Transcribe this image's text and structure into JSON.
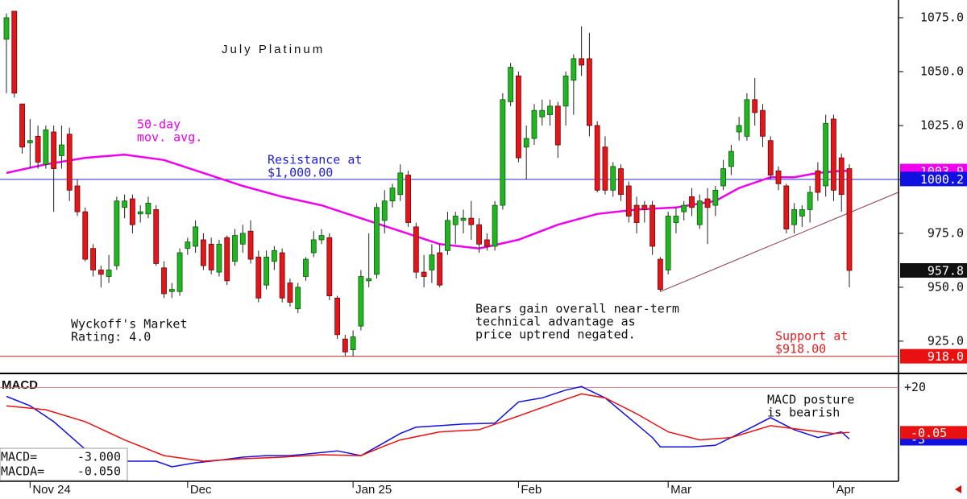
{
  "chart_data": {
    "type": "candlestick",
    "title": "July Platinum",
    "categories": [
      null,
      null,
      null,
      "Nov 24",
      null,
      null,
      null,
      null,
      null,
      null,
      null,
      null,
      null,
      null,
      null,
      null,
      null,
      null,
      null,
      null,
      null,
      null,
      null,
      "Dec",
      null,
      null,
      null,
      null,
      null,
      null,
      null,
      null,
      null,
      null,
      null,
      null,
      null,
      null,
      null,
      null,
      null,
      null,
      null,
      null,
      "Jan 25",
      null,
      null,
      null,
      null,
      null,
      null,
      null,
      null,
      null,
      null,
      null,
      null,
      null,
      null,
      null,
      null,
      null,
      null,
      null,
      null,
      "Feb",
      null,
      null,
      null,
      null,
      null,
      null,
      null,
      null,
      null,
      null,
      null,
      null,
      null,
      null,
      null,
      null,
      null,
      null,
      "Mar",
      null,
      null,
      null,
      null,
      null,
      null,
      null,
      null,
      null,
      null,
      null,
      null,
      null,
      null,
      null,
      null,
      null,
      null,
      null,
      null,
      "Apr",
      null,
      null
    ],
    "ohlc": [
      [
        1065,
        1077,
        1040,
        1075
      ],
      [
        1078,
        1078,
        1038,
        1040
      ],
      [
        1035,
        1035,
        1012,
        1015
      ],
      [
        1017,
        1028,
        1005,
        1018
      ],
      [
        1020,
        1025,
        1005,
        1008
      ],
      [
        1007,
        1025,
        1005,
        1023
      ],
      [
        1022,
        1025,
        985,
        1005
      ],
      [
        1011,
        1025,
        1005,
        1016
      ],
      [
        1021,
        1024,
        990,
        995
      ],
      [
        997,
        1000,
        983,
        985
      ],
      [
        985,
        987,
        962,
        963
      ],
      [
        968,
        970,
        955,
        958
      ],
      [
        958,
        960,
        950,
        956
      ],
      [
        955,
        965,
        952,
        958
      ],
      [
        960,
        992,
        958,
        990
      ],
      [
        987,
        993,
        982,
        990
      ],
      [
        991,
        993,
        975,
        979
      ],
      [
        984,
        988,
        980,
        985
      ],
      [
        984,
        992,
        982,
        989
      ],
      [
        986,
        988,
        960,
        961
      ],
      [
        959,
        962,
        945,
        947
      ],
      [
        948,
        952,
        945,
        949
      ],
      [
        948,
        968,
        946,
        966
      ],
      [
        968,
        973,
        965,
        971
      ],
      [
        969,
        981,
        966,
        978
      ],
      [
        972,
        975,
        958,
        960
      ],
      [
        970,
        973,
        956,
        958
      ],
      [
        957,
        972,
        955,
        970
      ],
      [
        973,
        974,
        951,
        953
      ],
      [
        962,
        977,
        960,
        974
      ],
      [
        970,
        979,
        966,
        975
      ],
      [
        976,
        981,
        961,
        963
      ],
      [
        964,
        967,
        943,
        945
      ],
      [
        951,
        967,
        949,
        964
      ],
      [
        962,
        969,
        958,
        967
      ],
      [
        966,
        968,
        943,
        945
      ],
      [
        952,
        954,
        941,
        943
      ],
      [
        940,
        952,
        938,
        950
      ],
      [
        955,
        964,
        953,
        963
      ],
      [
        966,
        976,
        964,
        972
      ],
      [
        972,
        977,
        970,
        974
      ],
      [
        973,
        975,
        944,
        946
      ],
      [
        945,
        946,
        926,
        928
      ],
      [
        926,
        928,
        918,
        920
      ],
      [
        921,
        930,
        918,
        927
      ],
      [
        932,
        958,
        930,
        955
      ],
      [
        953,
        975,
        950,
        954
      ],
      [
        956,
        989,
        954,
        987
      ],
      [
        981,
        995,
        975,
        990
      ],
      [
        990,
        998,
        987,
        996
      ],
      [
        993,
        1007,
        990,
        1003
      ],
      [
        1002,
        1004,
        978,
        980
      ],
      [
        978,
        980,
        954,
        957
      ],
      [
        957,
        965,
        950,
        955
      ],
      [
        958,
        970,
        952,
        965
      ],
      [
        966,
        970,
        950,
        951
      ],
      [
        967,
        985,
        965,
        981
      ],
      [
        979,
        985,
        970,
        983
      ],
      [
        981,
        986,
        975,
        982
      ],
      [
        982,
        990,
        972,
        979
      ],
      [
        979,
        982,
        966,
        970
      ],
      [
        972,
        975,
        967,
        969
      ],
      [
        969,
        990,
        967,
        988
      ],
      [
        988,
        1040,
        986,
        1037
      ],
      [
        1036,
        1054,
        1034,
        1052
      ],
      [
        1048,
        1050,
        1008,
        1010
      ],
      [
        1015,
        1025,
        1000,
        1019
      ],
      [
        1019,
        1035,
        1016,
        1032
      ],
      [
        1029,
        1037,
        1025,
        1032
      ],
      [
        1030,
        1037,
        1025,
        1034
      ],
      [
        1034,
        1036,
        1010,
        1016
      ],
      [
        1034,
        1050,
        1025,
        1048
      ],
      [
        1046,
        1058,
        1030,
        1056
      ],
      [
        1056,
        1071,
        1048,
        1053
      ],
      [
        1056,
        1068,
        1020,
        1025
      ],
      [
        1025,
        1027,
        994,
        995
      ],
      [
        1015,
        1020,
        993,
        995
      ],
      [
        995,
        1008,
        992,
        1006
      ],
      [
        1005,
        1007,
        990,
        993
      ],
      [
        997,
        999,
        980,
        983
      ],
      [
        988,
        992,
        975,
        980
      ],
      [
        988,
        990,
        980,
        986
      ],
      [
        988,
        990,
        965,
        969
      ],
      [
        963,
        964,
        948,
        949
      ],
      [
        958,
        985,
        956,
        983
      ],
      [
        980,
        987,
        975,
        983
      ],
      [
        985,
        990,
        981,
        988
      ],
      [
        992,
        996,
        983,
        987
      ],
      [
        979,
        993,
        977,
        990
      ],
      [
        991,
        996,
        970,
        987
      ],
      [
        988,
        997,
        983,
        995
      ],
      [
        997,
        1009,
        995,
        1005
      ],
      [
        1006,
        1016,
        1002,
        1013
      ],
      [
        1022,
        1029,
        1018,
        1025
      ],
      [
        1020,
        1040,
        1018,
        1037
      ],
      [
        1037,
        1047,
        1025,
        1031
      ],
      [
        1032,
        1035,
        1015,
        1020
      ],
      [
        1018,
        1020,
        1000,
        1002
      ],
      [
        1004,
        1006,
        995,
        998
      ],
      [
        997,
        998,
        975,
        977
      ],
      [
        979,
        989,
        975,
        986
      ],
      [
        983,
        988,
        978,
        986
      ],
      [
        986,
        997,
        980,
        994
      ],
      [
        1004,
        1008,
        990,
        994
      ],
      [
        997,
        1030,
        992,
        1026
      ],
      [
        1028,
        1030,
        990,
        995
      ],
      [
        1010,
        1012,
        985,
        993
      ],
      [
        1005,
        1007,
        950,
        957.8
      ]
    ],
    "up_color": "#22b522",
    "down_color": "#e4161c",
    "ylim": [
      910.4,
      1083.2
    ],
    "yticks": [
      {
        "value": 925,
        "label": "925.0"
      },
      {
        "value": 950,
        "label": "950.0"
      },
      {
        "value": 975,
        "label": "975.0"
      },
      {
        "value": 1000,
        "label": "1000.0"
      },
      {
        "value": 1025,
        "label": "1025.0"
      },
      {
        "value": 1050,
        "label": "1050.0"
      },
      {
        "value": 1075,
        "label": "1075.0"
      }
    ],
    "moving_average": {
      "color": "#ee00ee",
      "x": [
        0,
        5,
        10,
        15,
        20,
        25,
        30,
        35,
        40,
        45,
        50,
        55,
        60,
        65,
        70,
        75,
        80,
        85,
        90,
        93,
        97,
        100,
        103,
        106,
        107
      ],
      "values": [
        1003,
        1007,
        1010,
        1011.5,
        1009,
        1003,
        997,
        992,
        988,
        982,
        976,
        970,
        968,
        972,
        979,
        984,
        986,
        987,
        990,
        996,
        1001,
        1001,
        1003,
        1004,
        1003.9
      ]
    },
    "levels": [
      {
        "value": 1000,
        "color": "#2828d8"
      },
      {
        "value": 918,
        "color": "#e02020"
      }
    ],
    "trendline": {
      "color": "#8b3a4a",
      "x": [
        83,
        113.2
      ],
      "values": [
        948,
        994
      ]
    },
    "price_labels": [
      {
        "value": 1003.9,
        "label": "1003.9",
        "color": "#ee00ee"
      },
      {
        "value": 1000.2,
        "label": "1000.2",
        "color": "#1010e0"
      },
      {
        "value": 957.8,
        "label": "957.8",
        "color": "#111111"
      },
      {
        "value": 918.0,
        "label": "918.0",
        "color": "#e81010"
      }
    ],
    "annotations": [
      {
        "lines": [
          "50-day",
          "mov. avg."
        ],
        "color": "#ee00ee"
      },
      {
        "lines": [
          "Resistance at",
          "$1,000.00"
        ],
        "color": "#2020d0"
      },
      {
        "lines": [
          "Wyckoff's Market",
          "Rating: 4.0"
        ],
        "color": "#111111"
      },
      {
        "lines": [
          "Bears gain overall near-term",
          "technical advantage as",
          "price uptrend negated."
        ],
        "color": "#111111"
      },
      {
        "lines": [
          "Support at",
          "$918.00"
        ],
        "color": "#e02020"
      },
      {
        "lines": [
          "MACD posture",
          "is bearish"
        ],
        "color": "#111111"
      }
    ],
    "macd": {
      "title": "MACD",
      "ylim": [
        -21.9,
        26
      ],
      "yticks": [
        {
          "value": 20,
          "label": "+20"
        }
      ],
      "series": [
        {
          "name": "MACD=",
          "color": "#1010e0",
          "readout_value": -3,
          "readout_label": "-3.000",
          "box_value": -3,
          "box_label": "-3",
          "x": [
            0,
            3,
            6,
            10,
            13,
            16,
            19,
            21,
            24,
            27,
            30,
            33,
            36,
            39,
            42,
            45,
            47,
            50,
            52,
            55,
            58,
            62,
            65,
            68,
            71,
            73,
            76,
            79,
            82,
            83,
            87,
            90,
            94,
            97,
            100,
            103,
            106,
            107
          ],
          "values": [
            16.1,
            11.9,
            4.8,
            -7.6,
            -12.9,
            -12.9,
            -12.9,
            -15.4,
            -13.6,
            -12.5,
            -11.1,
            -10.4,
            -10.4,
            -9.4,
            -8.3,
            -10.4,
            -6.5,
            -0.5,
            2.3,
            3.0,
            3.7,
            4.1,
            13.6,
            15.4,
            18.9,
            20.5,
            15.4,
            6.6,
            -2.3,
            -6.5,
            -6.5,
            -5.8,
            1.2,
            6.6,
            1.2,
            -2.3,
            0.2,
            -3
          ]
        },
        {
          "name": "MACDA=",
          "color": "#e81010",
          "readout_value": -0.05,
          "readout_label": "-0.050",
          "box_value": -0.05,
          "box_label": "-0.05",
          "x": [
            0,
            5,
            10,
            15,
            20,
            25,
            30,
            35,
            40,
            45,
            48,
            50,
            55,
            60,
            65,
            70,
            73,
            76,
            80,
            84,
            88,
            92,
            97,
            101,
            105,
            107
          ],
          "values": [
            11.9,
            10.1,
            4.8,
            -3.4,
            -10.4,
            -12.9,
            -11.8,
            -11.1,
            -10.0,
            -10.4,
            -6.1,
            -3.4,
            0.2,
            1.2,
            7.3,
            13.6,
            17.2,
            15.4,
            8.3,
            0.2,
            -3.4,
            -2.3,
            3.0,
            1.2,
            -0.5,
            -0.05
          ]
        }
      ]
    }
  }
}
